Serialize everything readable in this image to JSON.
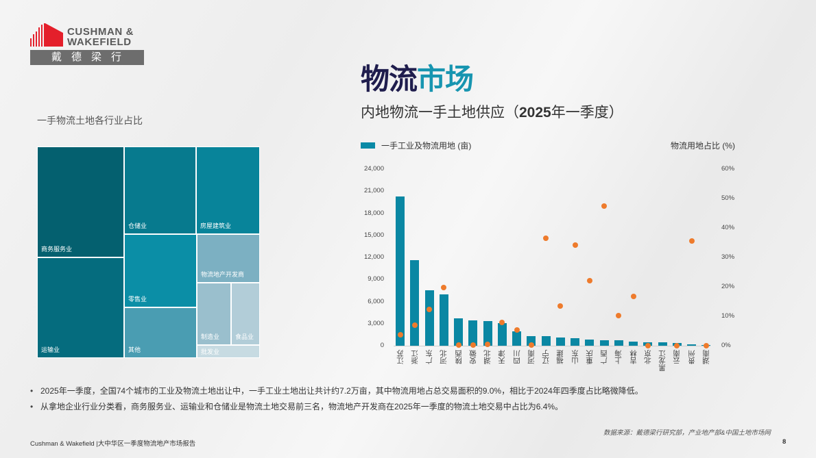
{
  "brand": {
    "name_line1": "CUSHMAN &",
    "name_line2": "WAKEFIELD",
    "name_cn": "戴德梁行",
    "color": "#e41f2b"
  },
  "header": {
    "title_part1": "物流",
    "title_part2": "市场",
    "subtitle_prefix": "内地物流一手土地供应（",
    "subtitle_bold": "2025",
    "subtitle_suffix": "年一季度）"
  },
  "treemap": {
    "title": "一手物流土地各行业占比",
    "tiles": [
      {
        "label": "商务服务业",
        "color": "#04606f"
      },
      {
        "label": "运输业",
        "color": "#056c7e"
      },
      {
        "label": "仓储业",
        "color": "#077a8e"
      },
      {
        "label": "房屋建筑业",
        "color": "#08849a"
      },
      {
        "label": "零售业",
        "color": "#0b8ea6"
      },
      {
        "label": "其他",
        "color": "#4a9db2"
      },
      {
        "label": "物流地产开发商",
        "color": "#7cb0c2"
      },
      {
        "label": "制造业",
        "color": "#9abfcd"
      },
      {
        "label": "食品业",
        "color": "#b2cdd8"
      },
      {
        "label": "批发业",
        "color": "#c7dbe2"
      }
    ]
  },
  "chart_data": {
    "type": "bar",
    "title": "内地物流一手土地供应（2025年一季度）",
    "legend": [
      "一手工业及物流用地 (亩)",
      "物流用地占比 (%)"
    ],
    "ylabel": "一手工业及物流用地 (亩)",
    "y2label": "物流用地占比 (%)",
    "ylim": [
      0,
      24000
    ],
    "y2lim": [
      0,
      60
    ],
    "yticks": [
      "0",
      "3,000",
      "6,000",
      "9,000",
      "12,000",
      "15,000",
      "18,000",
      "21,000",
      "24,000"
    ],
    "y2ticks": [
      "0%",
      "10%",
      "20%",
      "30%",
      "40%",
      "50%",
      "60%"
    ],
    "categories": [
      "江苏",
      "浙江",
      "广东",
      "河北",
      "陕西",
      "安徽",
      "湖北",
      "天津",
      "四川",
      "河南",
      "辽宁",
      "福建",
      "山东",
      "重庆",
      "广西",
      "上海",
      "吉林",
      "北京",
      "黑龙江",
      "云南",
      "贵州",
      "湖南"
    ],
    "series": [
      {
        "name": "一手工业及物流用地 (亩)",
        "type": "bar",
        "axis": "left",
        "color": "#0a87a3",
        "values": [
          20300,
          11600,
          7550,
          7000,
          3750,
          3450,
          3350,
          3050,
          1950,
          1300,
          1300,
          1100,
          1000,
          850,
          750,
          750,
          600,
          500,
          420,
          350,
          150,
          80
        ]
      },
      {
        "name": "物流用地占比 (%)",
        "type": "scatter",
        "axis": "right",
        "color": "#ee7b2c",
        "values": [
          3.8,
          7.0,
          12.3,
          19.8,
          0.3,
          0.2,
          0.5,
          7.9,
          5.3,
          0.3,
          36.5,
          13.5,
          34.2,
          22.1,
          47.4,
          10.2,
          16.7,
          0.0,
          null,
          0.0,
          35.6,
          0.0
        ]
      }
    ]
  },
  "bullets": [
    "2025年一季度，全国74个城市的工业及物流土地出让中，一手工业土地出让共计约7.2万亩，其中物流用地占总交易面积的9.0%，相比于2024年四季度占比略微降低。",
    "从拿地企业行业分类看，商务服务业、运输业和仓储业是物流土地交易前三名，物流地产开发商在2025年一季度的物流土地交易中占比为6.4%。"
  ],
  "source": "数据来源：戴德梁行研究部，产业地产部&中国土地市场网",
  "footer": "Cushman & Wakefield |大中华区一季度物流地产市场报告",
  "page_number": "8"
}
